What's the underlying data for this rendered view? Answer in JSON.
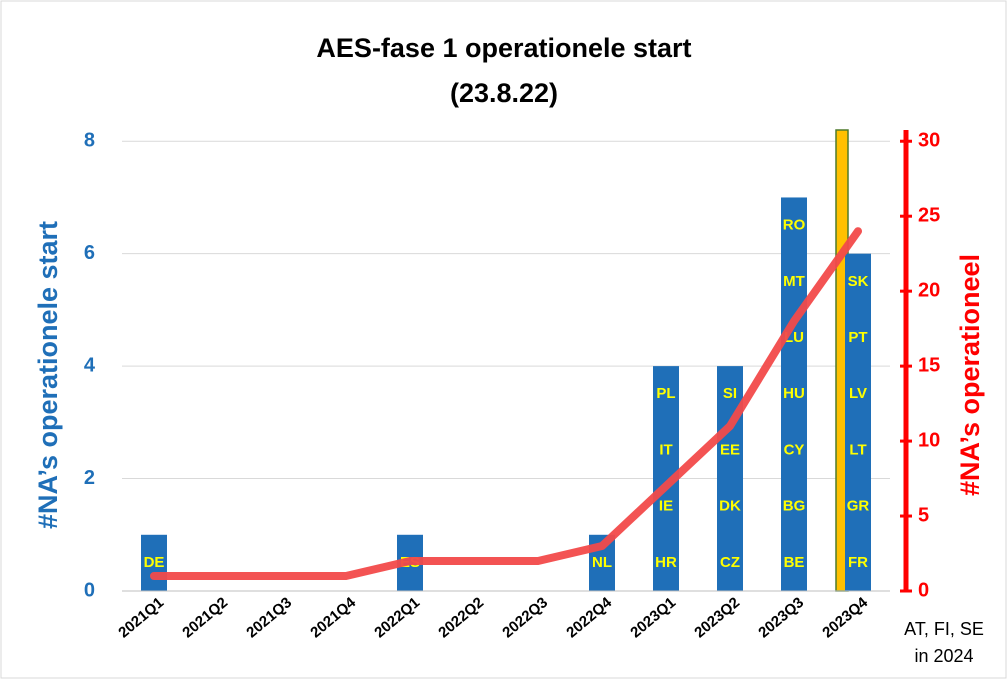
{
  "chart_data": {
    "type": "bar",
    "title": "AES-fase 1 operationele start",
    "subtitle": "(23.8.22)",
    "categories": [
      "2021Q1",
      "2021Q2",
      "2021Q3",
      "2021Q4",
      "2022Q1",
      "2022Q2",
      "2022Q3",
      "2022Q4",
      "2023Q1",
      "2023Q2",
      "2023Q3",
      "2023Q4"
    ],
    "series": [
      {
        "name": "#NA’s operationele start",
        "color": "#1f6fb8",
        "type": "bar",
        "values": [
          1,
          0,
          0,
          0,
          1,
          0,
          0,
          1,
          4,
          4,
          7,
          6
        ]
      },
      {
        "name": "#NA’s operationeel",
        "color": "#f24a4a",
        "type": "line",
        "axis": "y2",
        "values": [
          1,
          1,
          1,
          1,
          2,
          2,
          2,
          3,
          7,
          11,
          18,
          24
        ]
      }
    ],
    "bar_labels": [
      [
        "DE"
      ],
      [],
      [],
      [],
      [
        "ES"
      ],
      [],
      [],
      [
        "NL"
      ],
      [
        "HR",
        "IE",
        "IT",
        "PL"
      ],
      [
        "CZ",
        "DK",
        "EE",
        "SI"
      ],
      [
        "BE",
        "BG",
        "CY",
        "HU",
        "LU",
        "MT",
        "RO"
      ],
      [
        "FR",
        "GR",
        "LT",
        "LV",
        "PT",
        "SK"
      ]
    ],
    "ylabel": "#NA’s operationele start",
    "y2label": "#NA’s operationeel",
    "ylim": [
      0,
      8.2
    ],
    "yticks": [
      0,
      2,
      4,
      6,
      8
    ],
    "y2lim": [
      0,
      30.75
    ],
    "y2ticks": [
      0,
      5,
      10,
      15,
      20,
      25,
      30
    ],
    "annotations": [
      "AT, FI, SE",
      "in 2024"
    ]
  }
}
